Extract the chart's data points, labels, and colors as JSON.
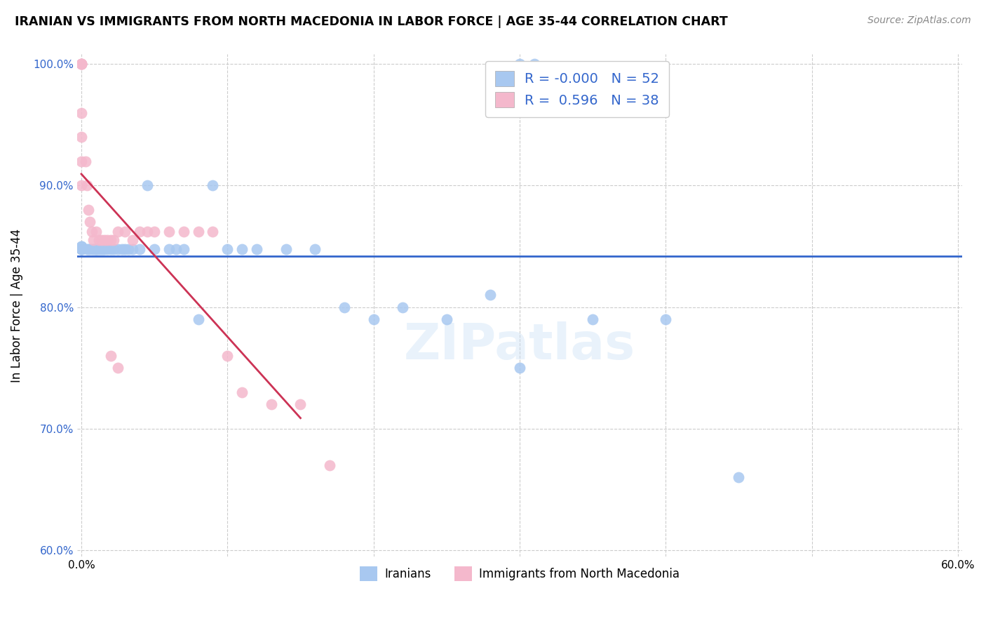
{
  "title": "IRANIAN VS IMMIGRANTS FROM NORTH MACEDONIA IN LABOR FORCE | AGE 35-44 CORRELATION CHART",
  "source": "Source: ZipAtlas.com",
  "ylabel": "In Labor Force | Age 35-44",
  "xlim": [
    -0.003,
    0.603
  ],
  "ylim": [
    0.595,
    1.008
  ],
  "legend_blue_r": "-0.000",
  "legend_blue_n": "52",
  "legend_pink_r": "0.596",
  "legend_pink_n": "38",
  "blue_color": "#a8c8f0",
  "pink_color": "#f4b8cc",
  "blue_line_color": "#3366cc",
  "pink_line_color": "#cc3355",
  "blue_trend_y": 0.842,
  "iranians_x": [
    0.0,
    0.0,
    0.0,
    0.0,
    0.0,
    0.0,
    0.004,
    0.005,
    0.006,
    0.007,
    0.008,
    0.009,
    0.01,
    0.01,
    0.011,
    0.012,
    0.013,
    0.014,
    0.015,
    0.016,
    0.018,
    0.02,
    0.022,
    0.025,
    0.028,
    0.03,
    0.032,
    0.035,
    0.04,
    0.045,
    0.05,
    0.06,
    0.065,
    0.07,
    0.08,
    0.09,
    0.1,
    0.11,
    0.12,
    0.14,
    0.16,
    0.18,
    0.2,
    0.22,
    0.25,
    0.28,
    0.3,
    0.35,
    0.4,
    0.45,
    0.3,
    0.31
  ],
  "iranians_y": [
    0.85,
    0.85,
    0.848,
    0.848,
    0.848,
    0.848,
    0.848,
    0.848,
    0.848,
    0.848,
    0.848,
    0.848,
    0.848,
    0.848,
    0.848,
    0.848,
    0.848,
    0.848,
    0.848,
    0.848,
    0.848,
    0.848,
    0.848,
    0.848,
    0.848,
    0.848,
    0.848,
    0.848,
    0.848,
    0.9,
    0.848,
    0.848,
    0.848,
    0.848,
    0.79,
    0.9,
    0.848,
    0.848,
    0.848,
    0.848,
    0.848,
    0.8,
    0.79,
    0.8,
    0.79,
    0.81,
    0.75,
    0.79,
    0.79,
    0.66,
    1.0,
    1.0
  ],
  "macedonia_x": [
    0.0,
    0.0,
    0.0,
    0.0,
    0.0,
    0.0,
    0.0,
    0.0,
    0.003,
    0.004,
    0.005,
    0.006,
    0.007,
    0.008,
    0.01,
    0.012,
    0.014,
    0.016,
    0.018,
    0.02,
    0.022,
    0.025,
    0.03,
    0.035,
    0.04,
    0.045,
    0.05,
    0.06,
    0.07,
    0.08,
    0.09,
    0.1,
    0.11,
    0.13,
    0.15,
    0.17,
    0.02,
    0.025
  ],
  "macedonia_y": [
    1.0,
    1.0,
    1.0,
    1.0,
    0.96,
    0.94,
    0.92,
    0.9,
    0.92,
    0.9,
    0.88,
    0.87,
    0.862,
    0.855,
    0.862,
    0.855,
    0.855,
    0.855,
    0.855,
    0.855,
    0.855,
    0.862,
    0.862,
    0.855,
    0.862,
    0.862,
    0.862,
    0.862,
    0.862,
    0.862,
    0.862,
    0.76,
    0.73,
    0.72,
    0.72,
    0.67,
    0.76,
    0.75
  ]
}
